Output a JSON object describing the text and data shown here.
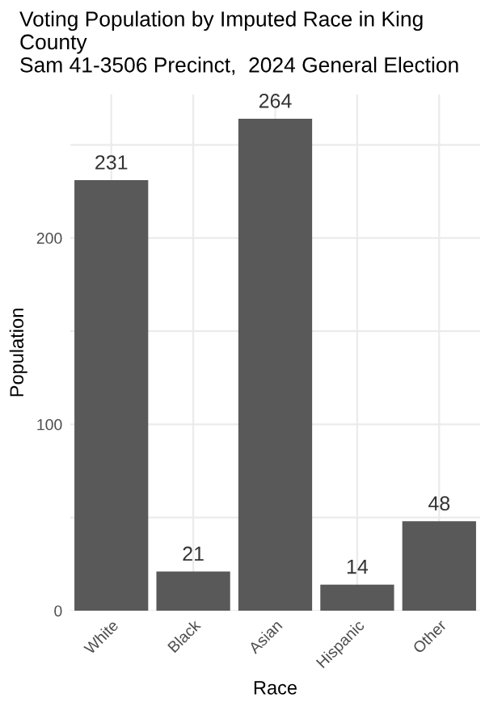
{
  "chart_data": {
    "type": "bar",
    "title": "Voting Population by Imputed Race in King County\nSam 41-3506 Precinct,  2024 General Election",
    "xlabel": "Race",
    "ylabel": "Population",
    "categories": [
      "White",
      "Black",
      "Asian",
      "Hispanic",
      "Other"
    ],
    "values": [
      231,
      21,
      264,
      14,
      48
    ],
    "color": "#595959",
    "data_labels": true,
    "ylim": [
      0,
      277
    ],
    "yticks": [
      0,
      {
        "value": 50,
        "label": null
      },
      100,
      {
        "value": 150,
        "label": null
      },
      200,
      {
        "value": 250,
        "label": null
      }
    ],
    "grid": true
  }
}
